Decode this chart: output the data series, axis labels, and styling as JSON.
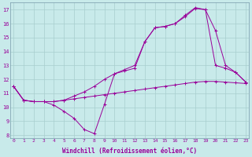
{
  "xlabel": "Windchill (Refroidissement éolien,°C)",
  "bg_color": "#c8eaea",
  "line_color": "#990099",
  "grid_color": "#b8d8d8",
  "ylim": [
    7.8,
    17.5
  ],
  "xlim": [
    -0.3,
    23.3
  ],
  "yticks": [
    8,
    9,
    10,
    11,
    12,
    13,
    14,
    15,
    16,
    17
  ],
  "xticks": [
    0,
    1,
    2,
    3,
    4,
    5,
    6,
    7,
    8,
    9,
    10,
    11,
    12,
    13,
    14,
    15,
    16,
    17,
    18,
    19,
    20,
    21,
    22,
    23
  ],
  "series": [
    [
      11.5,
      10.5,
      10.4,
      10.4,
      10.4,
      10.5,
      10.6,
      10.7,
      10.8,
      10.9,
      11.0,
      11.1,
      11.2,
      11.3,
      11.4,
      11.5,
      11.6,
      11.7,
      11.8,
      11.85,
      11.85,
      11.8,
      11.75,
      11.7
    ],
    [
      11.5,
      10.5,
      10.4,
      10.4,
      10.4,
      10.5,
      10.8,
      11.1,
      11.5,
      12.0,
      12.4,
      12.7,
      13.0,
      14.7,
      15.7,
      15.8,
      16.0,
      16.5,
      17.1,
      17.0,
      13.0,
      12.8,
      12.5,
      11.8
    ],
    [
      11.5,
      10.5,
      10.4,
      10.4,
      10.15,
      9.7,
      9.2,
      8.4,
      8.1,
      10.2,
      12.4,
      12.6,
      12.8,
      14.7,
      15.7,
      15.8,
      16.0,
      16.6,
      17.15,
      17.0,
      15.5,
      13.0,
      12.5,
      11.8
    ]
  ]
}
